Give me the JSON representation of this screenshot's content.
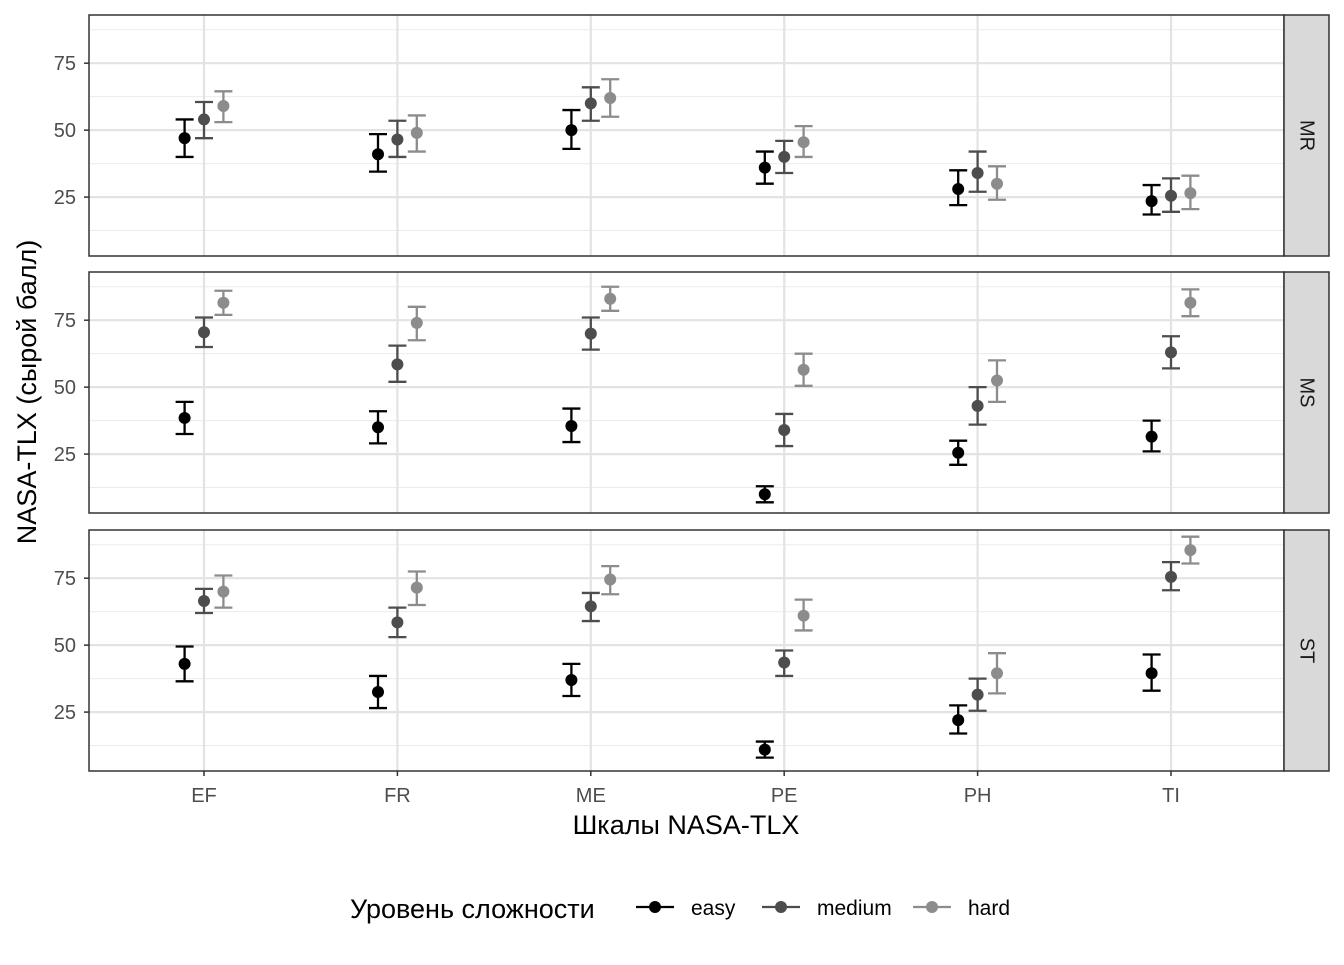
{
  "chart_data": {
    "type": "scatter",
    "subtype": "faceted point-range with error bars",
    "xlabel": "Шкалы NASA-TLX",
    "ylabel": "NASA-TLX (сырой балл)",
    "categories": [
      "EF",
      "FR",
      "ME",
      "PE",
      "PH",
      "TI"
    ],
    "ylim": [
      3,
      93
    ],
    "yticks": [
      25,
      50,
      75
    ],
    "grid": true,
    "legend": {
      "title": "Уровень сложности",
      "position": "bottom",
      "entries": [
        "easy",
        "medium",
        "hard"
      ]
    },
    "series_colors": {
      "easy": "#000000",
      "medium": "#4d4d4d",
      "hard": "#8c8c8c"
    },
    "panels": [
      {
        "label": "MR",
        "series": [
          {
            "name": "easy",
            "values": [
              47,
              41,
              50,
              36,
              28,
              23.5
            ],
            "lower": [
              40,
              34.5,
              43,
              30,
              22,
              18.5
            ],
            "upper": [
              54,
              48.5,
              57.5,
              42,
              35,
              29.5
            ]
          },
          {
            "name": "medium",
            "values": [
              54,
              46.5,
              60,
              40,
              34,
              25.5
            ],
            "lower": [
              47,
              40,
              53.5,
              34,
              27,
              19.5
            ],
            "upper": [
              60.5,
              53.5,
              66,
              46,
              42,
              32
            ]
          },
          {
            "name": "hard",
            "values": [
              59,
              49,
              62,
              45.5,
              30,
              26.5
            ],
            "lower": [
              53,
              42,
              55,
              40,
              24,
              20.5
            ],
            "upper": [
              64.5,
              55.5,
              69,
              51.5,
              36.5,
              33
            ]
          }
        ]
      },
      {
        "label": "MS",
        "series": [
          {
            "name": "easy",
            "values": [
              38.5,
              35,
              35.5,
              10,
              25.5,
              31.5
            ],
            "lower": [
              32.5,
              29,
              29.5,
              7,
              21,
              26
            ],
            "upper": [
              44.5,
              41,
              42,
              13,
              30,
              37.5
            ]
          },
          {
            "name": "medium",
            "values": [
              70.5,
              58.5,
              70,
              34,
              43,
              63
            ],
            "lower": [
              65,
              52,
              64,
              28,
              36,
              57
            ],
            "upper": [
              76,
              65.5,
              76,
              40,
              50,
              69
            ]
          },
          {
            "name": "hard",
            "values": [
              81.5,
              74,
              83,
              56.5,
              52.5,
              81.5
            ],
            "lower": [
              77,
              67.5,
              78.5,
              50.5,
              44.5,
              76.5
            ],
            "upper": [
              86,
              80,
              87.5,
              62.5,
              60,
              86.5
            ]
          }
        ]
      },
      {
        "label": "ST",
        "series": [
          {
            "name": "easy",
            "values": [
              43,
              32.5,
              37,
              11,
              22,
              39.5
            ],
            "lower": [
              36.5,
              26.5,
              31,
              8,
              17,
              33
            ],
            "upper": [
              49.5,
              38.5,
              43,
              14,
              27.5,
              46.5
            ]
          },
          {
            "name": "medium",
            "values": [
              66.5,
              58.5,
              64.5,
              43.5,
              31.5,
              75.5
            ],
            "lower": [
              62,
              53,
              59,
              38.5,
              25.5,
              70.5
            ],
            "upper": [
              71,
              64,
              69.5,
              48,
              37.5,
              81
            ]
          },
          {
            "name": "hard",
            "values": [
              70,
              71.5,
              74.5,
              61,
              39.5,
              85.5
            ],
            "lower": [
              64,
              65,
              69,
              55.5,
              32,
              80.5
            ],
            "upper": [
              76,
              77.5,
              79.5,
              67,
              47,
              90.5
            ]
          }
        ]
      }
    ]
  }
}
